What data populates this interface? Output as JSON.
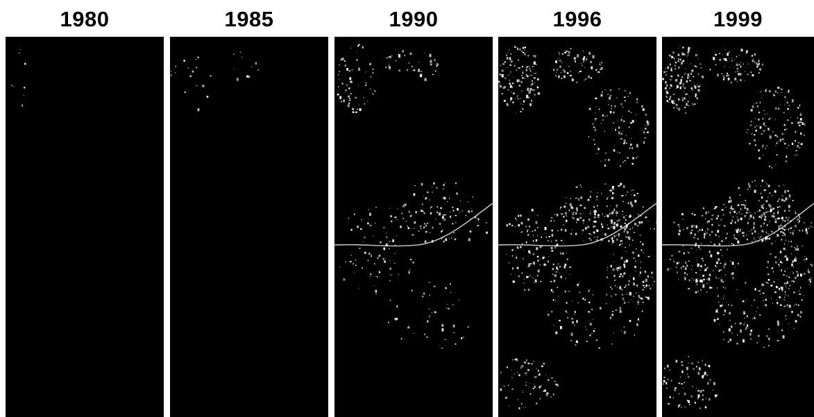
{
  "panels": [
    {
      "year": "1980",
      "density": 0.06
    },
    {
      "year": "1985",
      "density": 0.12
    },
    {
      "year": "1990",
      "density": 0.45
    },
    {
      "year": "1996",
      "density": 0.85
    },
    {
      "year": "1999",
      "density": 1.0
    }
  ],
  "colors": {
    "background": "#ffffff",
    "image_bg": "#000000",
    "feature": "#ffffff"
  }
}
